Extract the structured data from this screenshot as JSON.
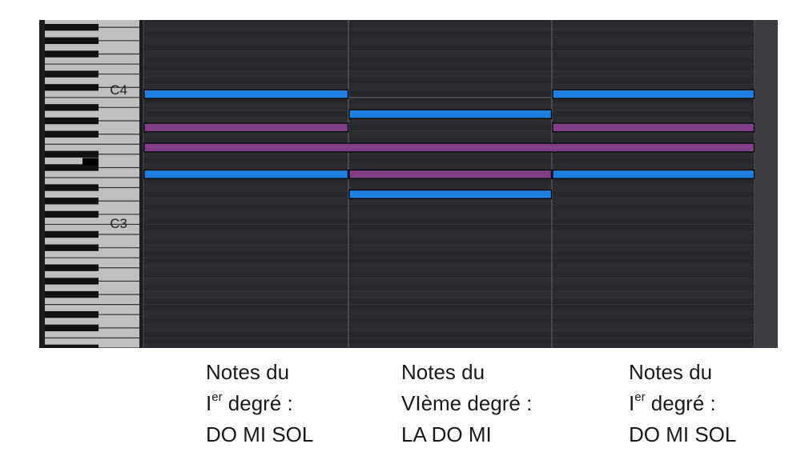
{
  "piano_roll": {
    "key_labels": [
      "C4",
      "C3"
    ],
    "colors": {
      "background": "#26282c",
      "background_alt": "#2a2c30",
      "grid_major": "#4a4d52",
      "grid_minor": "#303236",
      "white_key": "#bfbfbf",
      "black_key": "#111111",
      "note_blue": "#1f7fe0",
      "note_purple": "#7e3f86",
      "note_border": "#0d0d0d",
      "scroll_panel": "#3b3d41"
    },
    "notes": [
      {
        "name": "Do4",
        "color": "blue",
        "start": 0,
        "end": 1
      },
      {
        "name": "Do4",
        "color": "blue",
        "start": 2,
        "end": 3
      },
      {
        "name": "La3",
        "color": "blue",
        "start": 1,
        "end": 2
      },
      {
        "name": "Sol3",
        "color": "purple",
        "start": 0,
        "end": 1
      },
      {
        "name": "Sol3",
        "color": "purple",
        "start": 2,
        "end": 3
      },
      {
        "name": "Mi3",
        "color": "purple",
        "start": 0,
        "end": 3
      },
      {
        "name": "Do3",
        "color": "blue",
        "start": 0,
        "end": 1
      },
      {
        "name": "Do3",
        "color": "purple",
        "start": 1,
        "end": 2
      },
      {
        "name": "Do3",
        "color": "blue",
        "start": 2,
        "end": 3
      },
      {
        "name": "La2",
        "color": "blue",
        "start": 1,
        "end": 2
      }
    ]
  },
  "captions": [
    {
      "line1": "Notes du",
      "degree": "I",
      "degree_sup": "er",
      "degree_rest": " degré :",
      "notes": "DO MI SOL"
    },
    {
      "line1": "Notes du",
      "degree": "VIème degré :",
      "degree_sup": "",
      "degree_rest": "",
      "notes": "LA DO MI"
    },
    {
      "line1": "Notes du",
      "degree": "I",
      "degree_sup": "er",
      "degree_rest": " degré :",
      "notes": "DO MI SOL"
    }
  ]
}
